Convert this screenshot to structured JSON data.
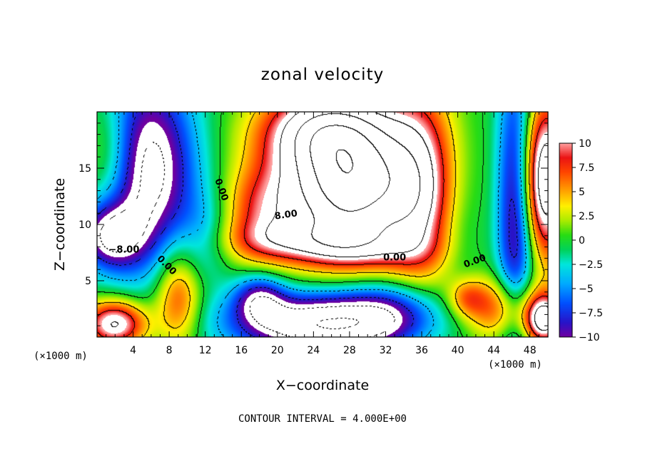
{
  "chart_data": {
    "type": "heatmap",
    "title": "zonal velocity",
    "xlabel": "X−coordinate",
    "ylabel": "Z−coordinate",
    "x_scale_note_left": "(×1000 m)",
    "x_scale_note_right": "(×1000 m)",
    "footer": "CONTOUR INTERVAL = 4.000E+00",
    "xlim": [
      0,
      50
    ],
    "ylim": [
      0,
      20
    ],
    "x_ticks": [
      {
        "v": 4,
        "label": "4"
      },
      {
        "v": 8,
        "label": "8"
      },
      {
        "v": 12,
        "label": "12"
      },
      {
        "v": 16,
        "label": "16"
      },
      {
        "v": 20,
        "label": "20"
      },
      {
        "v": 24,
        "label": "24"
      },
      {
        "v": 28,
        "label": "28"
      },
      {
        "v": 32,
        "label": "32"
      },
      {
        "v": 36,
        "label": "36"
      },
      {
        "v": 40,
        "label": "40"
      },
      {
        "v": 44,
        "label": "44"
      },
      {
        "v": 48,
        "label": "48"
      }
    ],
    "y_ticks": [
      {
        "v": 5,
        "label": "5"
      },
      {
        "v": 10,
        "label": "10"
      },
      {
        "v": 15,
        "label": "15"
      }
    ],
    "colorbar": {
      "range": [
        -10,
        10
      ],
      "ticks": [
        {
          "v": 10,
          "label": "10"
        },
        {
          "v": 7.5,
          "label": "7.5"
        },
        {
          "v": 5,
          "label": "5"
        },
        {
          "v": 2.5,
          "label": "2.5"
        },
        {
          "v": 0,
          "label": "0"
        },
        {
          "v": -2.5,
          "label": "−2.5"
        },
        {
          "v": -5,
          "label": "−5"
        },
        {
          "v": -7.5,
          "label": "−7.5"
        },
        {
          "v": -10,
          "label": "−10"
        }
      ]
    },
    "contour_labels": [
      {
        "text": "0.00",
        "x": 13.5,
        "y": 13.0,
        "rot": -70
      },
      {
        "text": "8.00",
        "x": 21.0,
        "y": 10.6,
        "rot": 8
      },
      {
        "text": "0.00",
        "x": 33.0,
        "y": 6.8,
        "rot": 0
      },
      {
        "text": "0.00",
        "x": 42.0,
        "y": 6.5,
        "rot": 20
      },
      {
        "text": "−8.00",
        "x": 3.0,
        "y": 7.5,
        "rot": 0
      },
      {
        "text": "0.00",
        "x": 7.5,
        "y": 6.2,
        "rot": -45
      }
    ],
    "field": {
      "base": 0,
      "features": [
        {
          "x": 28,
          "z": 13.5,
          "sx": 5.5,
          "sz": 4.5,
          "a": 22
        },
        {
          "x": 36,
          "z": 13,
          "sx": 2.8,
          "sz": 7,
          "a": 8
        },
        {
          "x": 25,
          "z": 18.5,
          "sx": 5,
          "sz": 2.5,
          "a": 10
        },
        {
          "x": 18,
          "z": 11,
          "sx": 3,
          "sz": 3,
          "a": 6
        },
        {
          "x": 22,
          "z": 8.5,
          "sx": 6,
          "sz": 1.3,
          "a": 5
        },
        {
          "x": 30,
          "z": 7.8,
          "sx": 5,
          "sz": 1.2,
          "a": 3
        },
        {
          "x": 5,
          "z": 15,
          "sx": 4,
          "sz": 6,
          "a": -15
        },
        {
          "x": 1.5,
          "z": 9,
          "sx": 2.5,
          "sz": 2,
          "a": -10
        },
        {
          "x": 1.5,
          "z": 16,
          "sx": 2.5,
          "sz": 4,
          "a": 8
        },
        {
          "x": 46.5,
          "z": 12,
          "sx": 1.5,
          "sz": 9,
          "a": -12
        },
        {
          "x": 49.5,
          "z": 14,
          "sx": 2,
          "sz": 5,
          "a": 16
        },
        {
          "x": 25,
          "z": 1.2,
          "sx": 7,
          "sz": 2,
          "a": -16
        },
        {
          "x": 18,
          "z": 3.5,
          "sx": 2,
          "sz": 1.5,
          "a": -8
        },
        {
          "x": 33,
          "z": 2.5,
          "sx": 4,
          "sz": 2,
          "a": -6
        },
        {
          "x": 9,
          "z": 3.5,
          "sx": 1.8,
          "sz": 3,
          "a": 8
        },
        {
          "x": 2,
          "z": 1.2,
          "sx": 2.5,
          "sz": 1.5,
          "a": 13
        },
        {
          "x": 45,
          "z": 2.5,
          "sx": 3.5,
          "sz": 2,
          "a": 8
        },
        {
          "x": 41,
          "z": 3.5,
          "sx": 1.5,
          "sz": 1.2,
          "a": 5
        },
        {
          "x": 49.5,
          "z": 1.5,
          "sx": 1.5,
          "sz": 1.5,
          "a": 12
        },
        {
          "x": 12,
          "z": 9,
          "sx": 2,
          "sz": 3,
          "a": -3
        },
        {
          "x": 40,
          "z": 10,
          "sx": 2,
          "sz": 6,
          "a": -2
        }
      ]
    }
  }
}
